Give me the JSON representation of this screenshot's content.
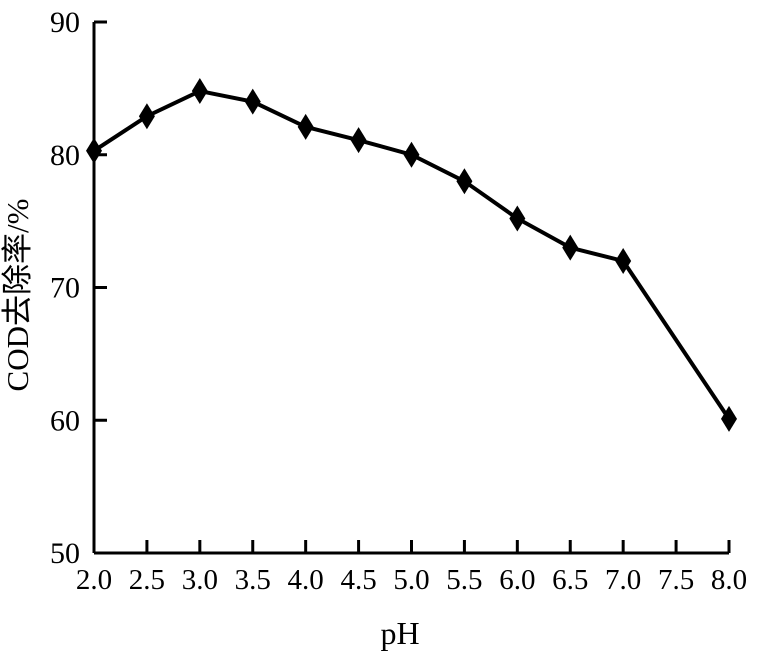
{
  "chart_data": {
    "type": "line",
    "title": "",
    "xlabel": "pH",
    "ylabel": "COD去除率/%",
    "series": [
      {
        "name": "COD removal rate",
        "x": [
          2.0,
          2.5,
          3.0,
          3.5,
          4.0,
          4.5,
          5.0,
          5.5,
          6.0,
          6.5,
          7.0,
          8.0
        ],
        "y": [
          80.3,
          82.9,
          84.8,
          84.0,
          82.1,
          81.1,
          80.0,
          78.0,
          75.2,
          73.0,
          72.0,
          60.1
        ],
        "marker": "diamond",
        "color": "#000000"
      }
    ],
    "xlim": [
      2.0,
      8.0
    ],
    "ylim": [
      50,
      90
    ],
    "xticks": [
      2.0,
      2.5,
      3.0,
      3.5,
      4.0,
      4.5,
      5.0,
      5.5,
      6.0,
      6.5,
      7.0,
      7.5,
      8.0
    ],
    "xtick_labels": [
      "2.0",
      "2.5",
      "3.0",
      "3.5",
      "4.0",
      "4.5",
      "5.0",
      "5.5",
      "6.0",
      "6.5",
      "7.0",
      "7.5",
      "8.0"
    ],
    "yticks": [
      50,
      60,
      70,
      80,
      90
    ],
    "ytick_labels": [
      "50",
      "60",
      "70",
      "80",
      "90"
    ],
    "grid": false,
    "legend_position": "none",
    "axis_color": "#000000",
    "background_color": "#ffffff"
  }
}
